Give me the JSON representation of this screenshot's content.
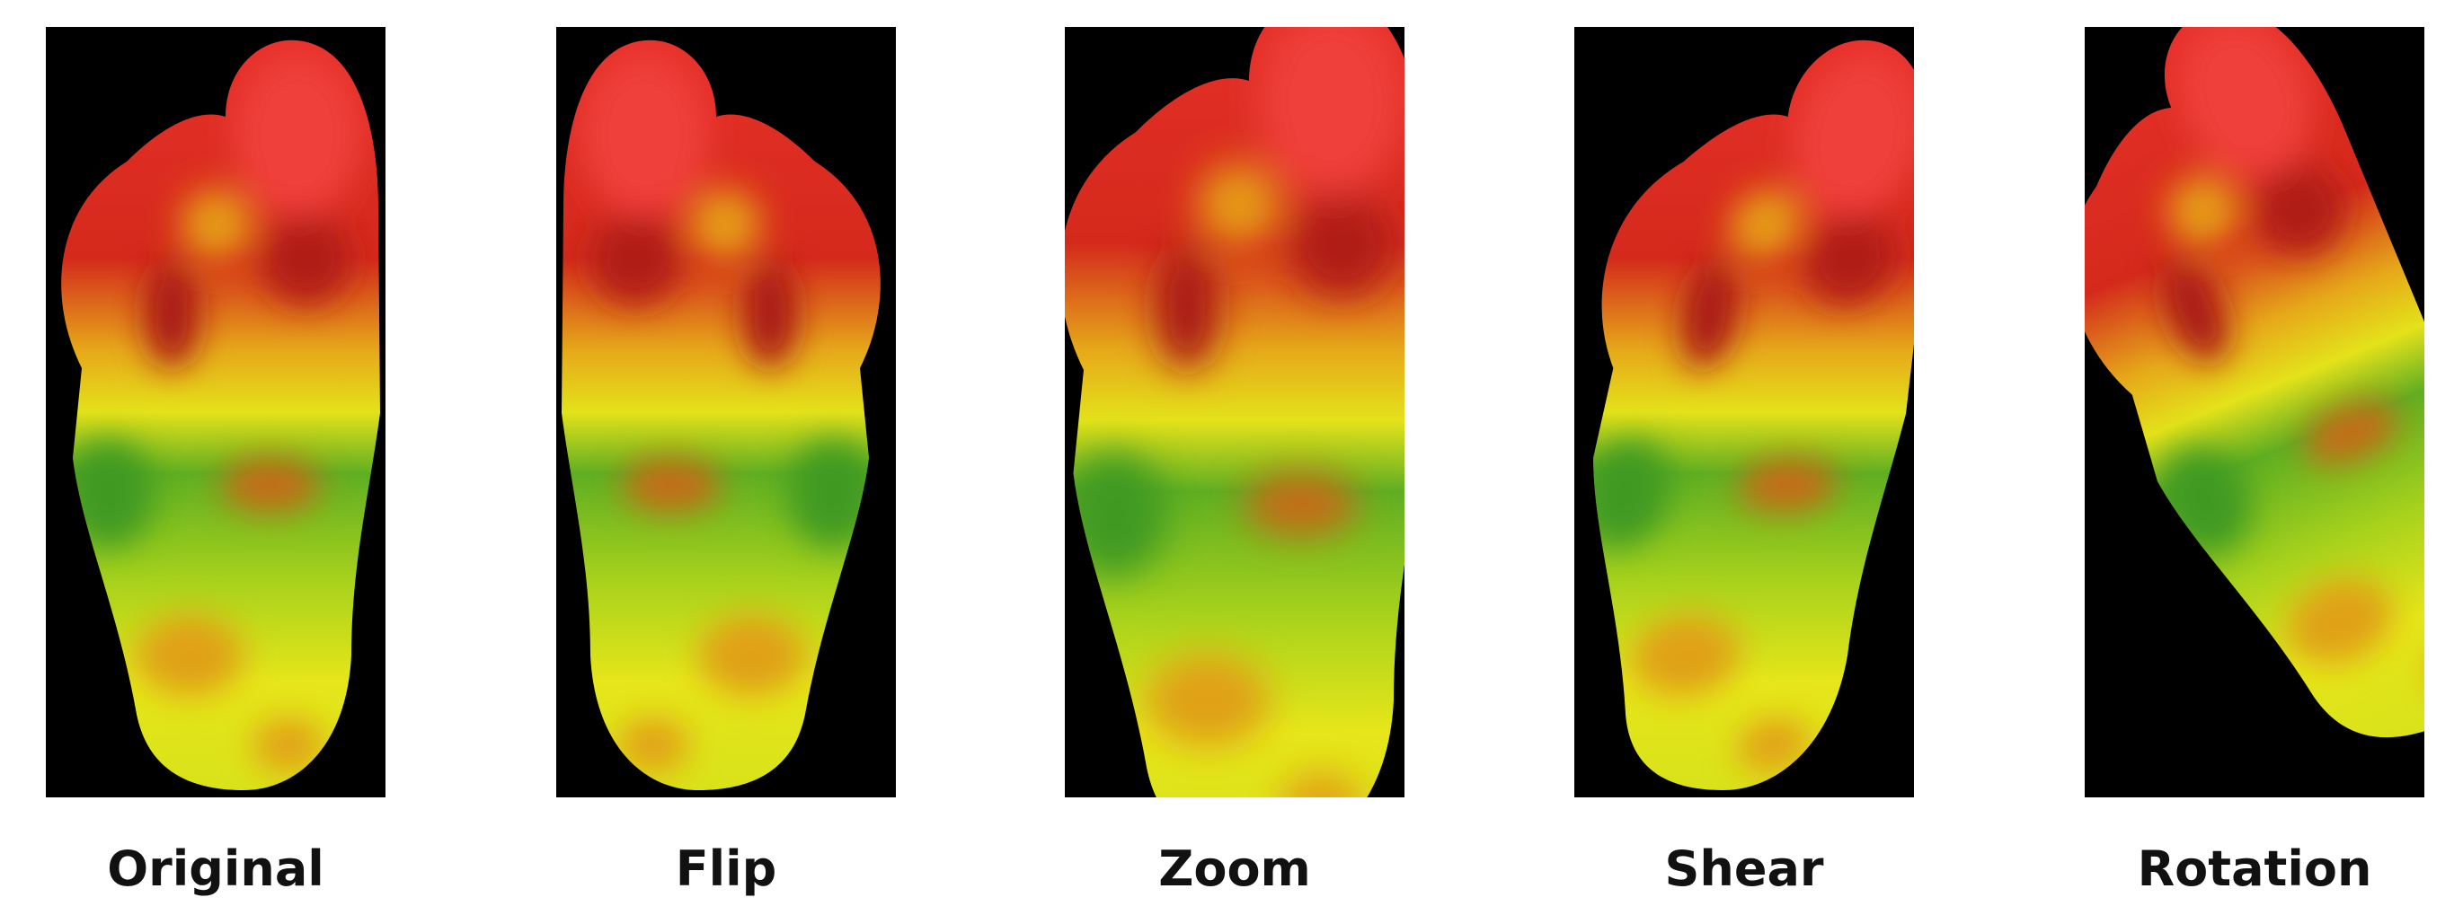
{
  "panels": [
    {
      "label": "Original"
    },
    {
      "label": "Flip"
    },
    {
      "label": "Zoom"
    },
    {
      "label": "Shear"
    },
    {
      "label": "Rotation"
    }
  ]
}
